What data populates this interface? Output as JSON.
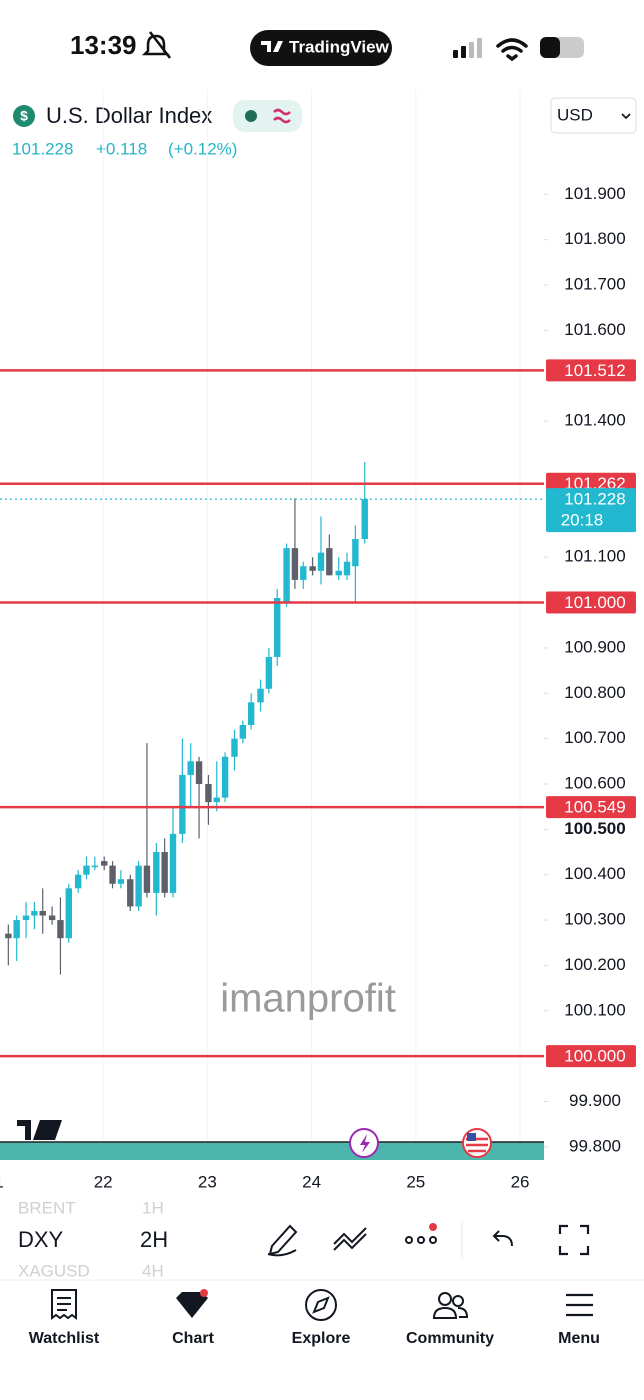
{
  "status_bar": {
    "time": "13:39",
    "app": "TradingView"
  },
  "symbol": {
    "name": "U.S. Dollar Index",
    "price": "101.228",
    "change": "+0.118",
    "change_pct": "(+0.12%)",
    "currency": "USD"
  },
  "chart_data": {
    "type": "candlestick",
    "x": [
      21.09,
      21.17,
      21.26,
      21.34,
      21.42,
      21.51,
      21.59,
      21.67,
      21.76,
      21.84,
      21.92,
      22.01,
      22.09,
      22.17,
      22.26,
      22.34,
      22.42,
      22.51,
      22.59,
      22.67,
      22.76,
      22.84,
      22.92,
      23.01,
      23.09,
      23.17,
      23.26,
      23.34,
      23.42,
      23.51,
      23.59,
      23.67,
      23.76,
      23.84,
      23.92,
      24.01,
      24.09,
      24.17,
      24.26,
      24.34,
      24.42,
      24.51
    ],
    "open": [
      100.27,
      100.26,
      100.3,
      100.31,
      100.32,
      100.31,
      100.3,
      100.26,
      100.37,
      100.4,
      100.42,
      100.43,
      100.42,
      100.38,
      100.39,
      100.33,
      100.42,
      100.36,
      100.45,
      100.36,
      100.49,
      100.62,
      100.65,
      100.6,
      100.56,
      100.57,
      100.66,
      100.7,
      100.73,
      100.78,
      100.81,
      100.88,
      101.0,
      101.12,
      101.05,
      101.08,
      101.07,
      101.12,
      101.06,
      101.06,
      101.08,
      101.14
    ],
    "high": [
      100.29,
      100.31,
      100.34,
      100.34,
      100.37,
      100.33,
      100.35,
      100.38,
      100.41,
      100.44,
      100.44,
      100.44,
      100.43,
      100.41,
      100.4,
      100.43,
      100.69,
      100.47,
      100.48,
      100.55,
      100.7,
      100.69,
      100.66,
      100.62,
      100.65,
      100.67,
      100.72,
      100.74,
      100.8,
      100.83,
      100.9,
      101.03,
      101.13,
      101.23,
      101.09,
      101.1,
      101.19,
      101.15,
      101.1,
      101.11,
      101.17,
      101.31
    ],
    "low": [
      100.2,
      100.21,
      100.26,
      100.28,
      100.27,
      100.29,
      100.18,
      100.25,
      100.36,
      100.39,
      100.41,
      100.41,
      100.37,
      100.37,
      100.32,
      100.32,
      100.35,
      100.31,
      100.35,
      100.35,
      100.47,
      100.55,
      100.48,
      100.51,
      100.54,
      100.56,
      100.63,
      100.69,
      100.72,
      100.76,
      100.8,
      100.86,
      100.99,
      101.03,
      101.03,
      101.06,
      101.04,
      101.06,
      101.05,
      101.05,
      101.0,
      101.13
    ],
    "close": [
      100.26,
      100.3,
      100.31,
      100.32,
      100.31,
      100.3,
      100.26,
      100.37,
      100.4,
      100.42,
      100.42,
      100.42,
      100.38,
      100.39,
      100.33,
      100.42,
      100.36,
      100.45,
      100.36,
      100.49,
      100.62,
      100.65,
      100.6,
      100.56,
      100.57,
      100.66,
      100.7,
      100.73,
      100.78,
      100.81,
      100.88,
      101.01,
      101.12,
      101.05,
      101.08,
      101.07,
      101.11,
      101.06,
      101.07,
      101.09,
      101.14,
      101.228
    ],
    "up_color": "#22b8cf",
    "down_color": "#5d606b",
    "xlim": [
      21.01,
      26.23
    ],
    "xticks": [
      {
        "value": 21,
        "label": "1"
      },
      22,
      23,
      24,
      25,
      26
    ],
    "ylim": [
      99.76,
      102.13
    ],
    "yticks": [
      {
        "value": 101.9,
        "label": "101.900"
      },
      {
        "value": 101.8,
        "label": "101.800"
      },
      {
        "value": 101.7,
        "label": "101.700"
      },
      {
        "value": 101.6,
        "label": "101.600"
      },
      {
        "value": 101.4,
        "label": "101.400"
      },
      {
        "value": 101.1,
        "label": "101.100"
      },
      {
        "value": 100.9,
        "label": "100.900"
      },
      {
        "value": 100.8,
        "label": "100.800"
      },
      {
        "value": 100.7,
        "label": "100.700"
      },
      {
        "value": 100.6,
        "label": "100.600"
      },
      {
        "value": 100.4,
        "label": "100.400"
      },
      {
        "value": 100.3,
        "label": "100.300"
      },
      {
        "value": 100.2,
        "label": "100.200"
      },
      {
        "value": 100.1,
        "label": "100.100"
      },
      {
        "value": 99.9,
        "label": "99.900"
      },
      {
        "value": 99.8,
        "label": "99.800"
      }
    ],
    "bold_tick": {
      "value": 100.5,
      "label": "100.500"
    },
    "levels": [
      {
        "value": 101.512,
        "label": "101.512"
      },
      {
        "value": 101.262,
        "label": "101.262"
      },
      {
        "value": 101.0,
        "label": "101.000"
      },
      {
        "value": 100.549,
        "label": "100.549"
      },
      {
        "value": 100.0,
        "label": "100.000"
      }
    ],
    "level_color": "#e53945",
    "last_price": {
      "value": 101.228,
      "label": "101.228",
      "countdown": "20:18"
    },
    "watermark": "imanprofit",
    "grid": true
  },
  "toolbar": {
    "symbols": [
      "BRENT",
      "DXY",
      "XAGUSD"
    ],
    "intervals": [
      "1H",
      "2H",
      "4H"
    ]
  },
  "nav": [
    "Watchlist",
    "Chart",
    "Explore",
    "Community",
    "Menu"
  ]
}
